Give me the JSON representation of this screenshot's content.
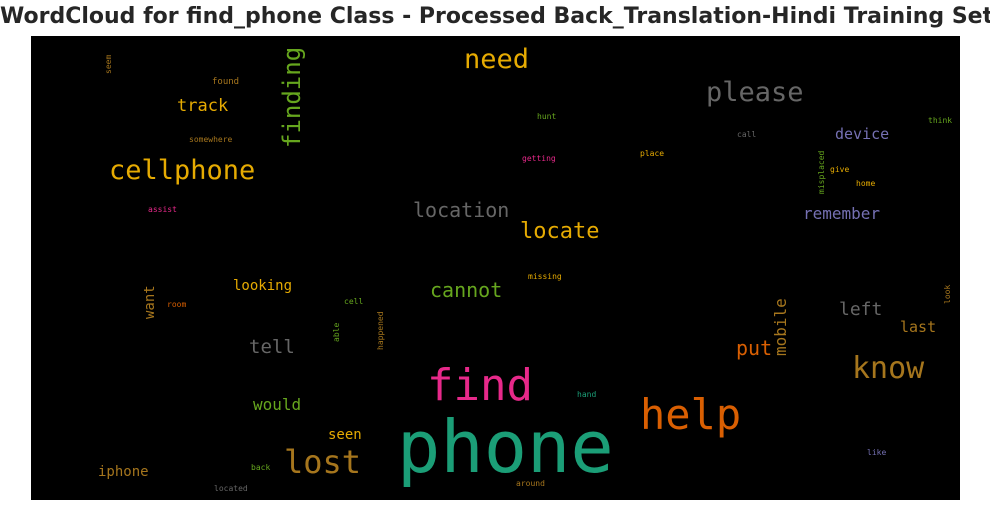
{
  "title": "WordCloud for find_phone Class - Processed Back_Translation-Hindi Training Set",
  "words": {
    "phone": "phone",
    "find": "find",
    "help": "help",
    "lost": "lost",
    "know": "know",
    "cellphone": "cellphone",
    "please": "please",
    "need": "need",
    "finding": "finding",
    "locate": "locate",
    "location": "location",
    "cannot": "cannot",
    "put": "put",
    "mobile": "mobile",
    "track": "track",
    "remember": "remember",
    "device": "device",
    "left": "left",
    "tell": "tell",
    "would": "would",
    "last": "last",
    "looking": "looking",
    "want": "want",
    "seen": "seen",
    "iphone": "iphone",
    "seem": "seem",
    "found": "found",
    "somewhere": "somewhere",
    "hunt": "hunt",
    "getting": "getting",
    "place": "place",
    "call": "call",
    "misplaced": "misplaced",
    "give": "give",
    "home": "home",
    "think": "think",
    "assist": "assist",
    "missing": "missing",
    "room": "room",
    "cell": "cell",
    "able": "able",
    "happened": "happened",
    "look": "look",
    "hand": "hand",
    "back": "back",
    "located": "located",
    "around": "around",
    "like": "like"
  },
  "colors": {
    "background": "#000000",
    "teal": "#1b9e77",
    "pink": "#e7298a",
    "orange": "#d95f02",
    "gold": "#e6ab02",
    "olive": "#a6761d",
    "green": "#66a61e",
    "gray": "#666666",
    "purple": "#7570b3"
  }
}
